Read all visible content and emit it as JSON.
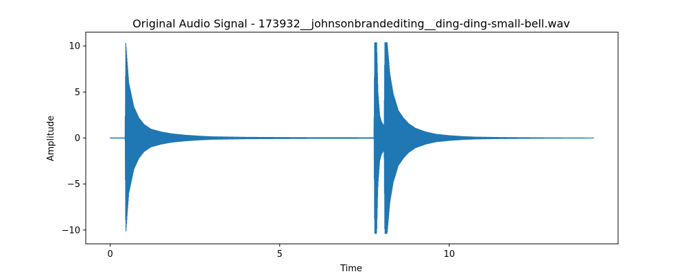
{
  "chart_data": {
    "type": "line",
    "title": "Original Audio Signal - 173932__johnsonbrandediting__ding-ding-small-bell.wav",
    "xlabel": "Time",
    "ylabel": "Amplitude",
    "xlim": [
      -0.72,
      14.98
    ],
    "ylim": [
      -11.5,
      11.5
    ],
    "xticks": [
      0,
      5,
      10
    ],
    "xtick_labels": [
      "0",
      "5",
      "10"
    ],
    "yticks": [
      -10,
      -5,
      0,
      5,
      10
    ],
    "ytick_labels": [
      "−10",
      "−5",
      "0",
      "5",
      "10"
    ],
    "grid": false,
    "series": [
      {
        "color": "#1f77b4",
        "x_range": [
          0,
          14.26
        ],
        "envelope": {
          "x": [
            0,
            0.4,
            0.44,
            0.46,
            0.55,
            0.7,
            0.85,
            1.0,
            1.2,
            1.5,
            1.8,
            2.2,
            2.6,
            3.0,
            3.5,
            4.0,
            5.0,
            6.0,
            7.0,
            7.5,
            7.78,
            7.8,
            7.82,
            7.86,
            7.9,
            7.95,
            8.0,
            8.05,
            8.08,
            8.1,
            8.13,
            8.17,
            8.25,
            8.35,
            8.5,
            8.65,
            8.8,
            9.0,
            9.3,
            9.6,
            10.0,
            10.4,
            10.8,
            11.5,
            12.5,
            13.5,
            14.26
          ],
          "y": [
            0.05,
            0.05,
            0.05,
            10.4,
            6.0,
            3.4,
            2.2,
            1.5,
            1.0,
            0.7,
            0.5,
            0.35,
            0.25,
            0.18,
            0.15,
            0.12,
            0.1,
            0.08,
            0.08,
            0.07,
            0.07,
            10.4,
            10.4,
            10.4,
            5.0,
            2.5,
            1.8,
            1.5,
            1.3,
            10.4,
            10.4,
            10.4,
            7.0,
            4.8,
            3.0,
            2.2,
            1.6,
            1.1,
            0.7,
            0.45,
            0.3,
            0.2,
            0.14,
            0.1,
            0.07,
            0.05,
            0.04
          ]
        }
      }
    ]
  }
}
